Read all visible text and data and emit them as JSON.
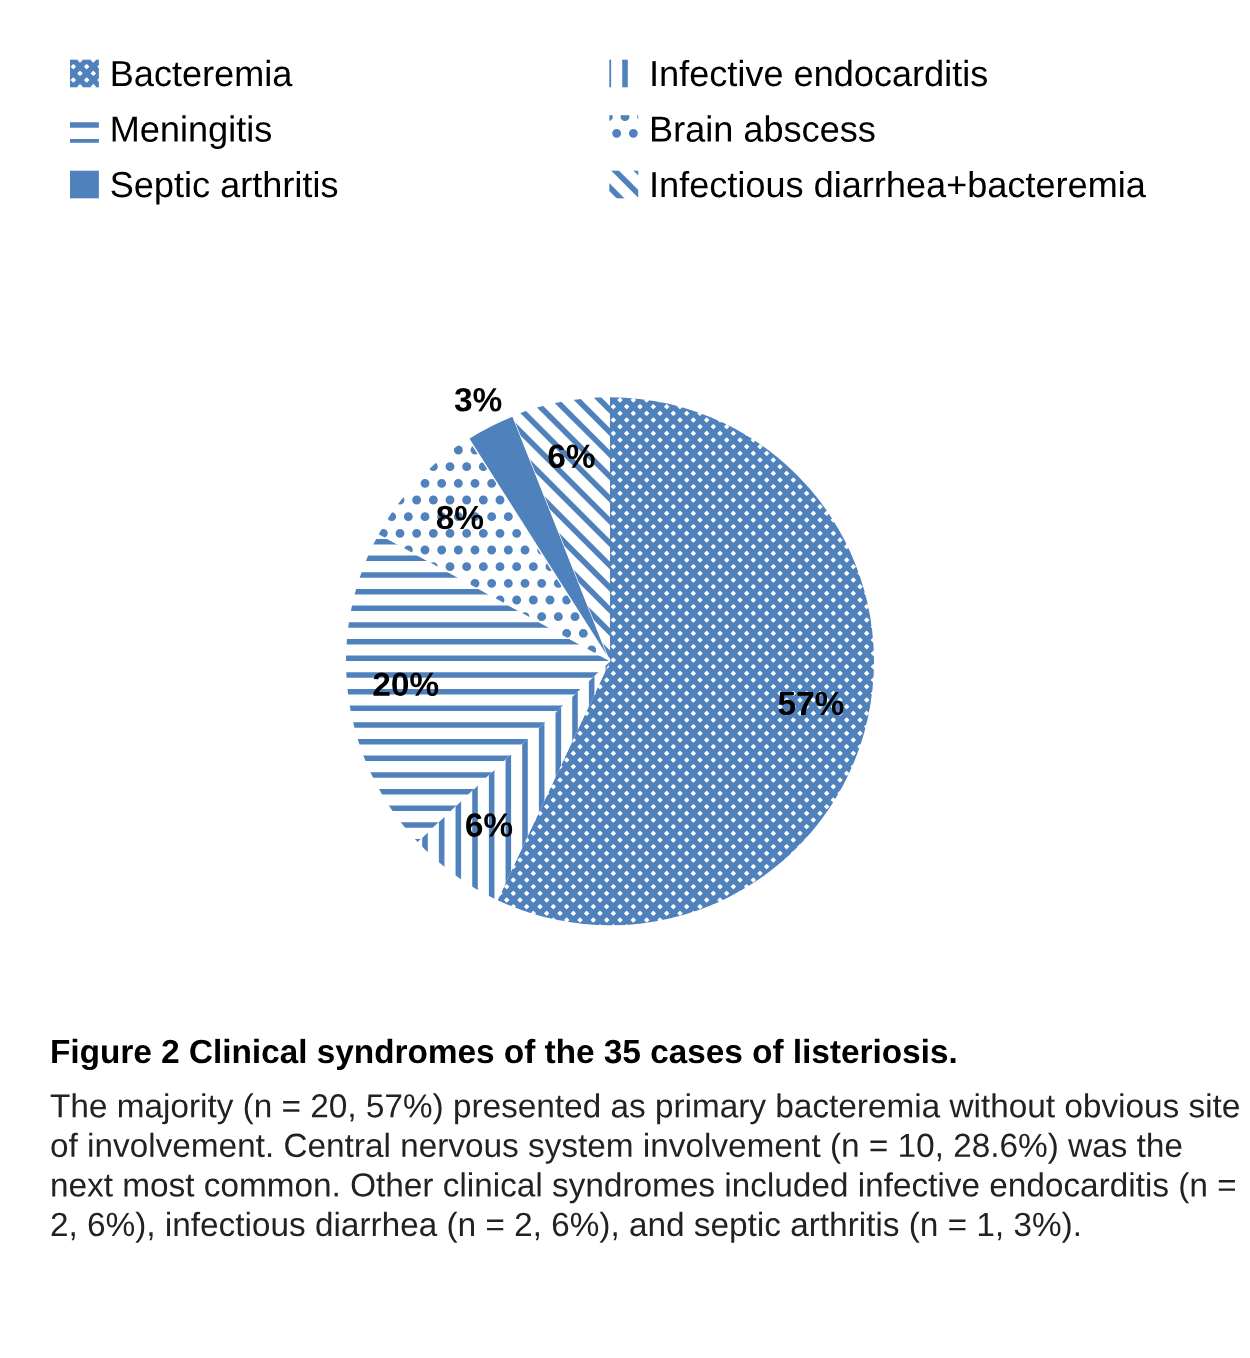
{
  "chart_data": {
    "type": "pie",
    "title": "Figure 2 Clinical syndromes of the 35 cases of listeriosis.",
    "categories": [
      "Bacteremia",
      "Infective endocarditis",
      "Meningitis",
      "Brain abscess",
      "Septic arthritis",
      "Infectious diarrhea+bacteremia"
    ],
    "values": [
      57,
      6,
      20,
      8,
      3,
      6
    ],
    "colors": [
      "#4f81bd",
      "#4f81bd",
      "#4f81bd",
      "#4f81bd",
      "#4f81bd",
      "#4f81bd"
    ],
    "value_labels": [
      "57%",
      "6%",
      "20%",
      "8%",
      "3%",
      "6%"
    ],
    "legend": "top",
    "annotations": [
      "The majority (n = 20, 57%) presented as primary bacteremia without obvious site of involvement. Central nervous system involvement (n = 10, 28.6%) was the next most common. Other clinical syndromes included infective endocarditis (n = 2, 6%), infectious diarrhea (n = 2, 6%), and septic arthritis (n = 1, 3%)."
    ]
  }
}
